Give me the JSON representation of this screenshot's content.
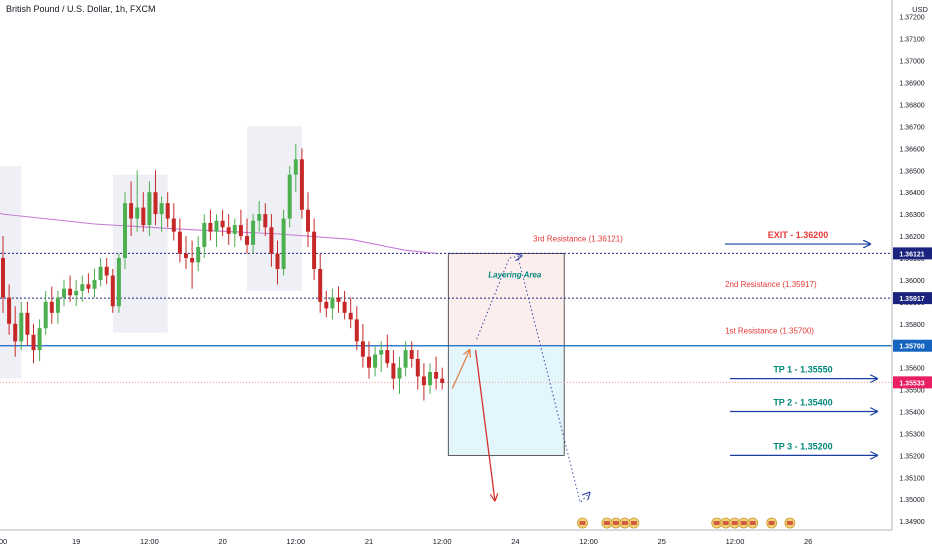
{
  "header": {
    "title": "British Pound / U.S. Dollar, 1h, FXCM",
    "currency": "USD"
  },
  "colors": {
    "up": "#4caf50",
    "down": "#c62828",
    "ma": "#c77ad6",
    "resistance": "#1a237e",
    "main_line": "#1565c0",
    "current_line": "#ef9a9a",
    "exit_text": "#e53935",
    "tp_text": "#00897b",
    "label_red": "#e53935",
    "arrow_blue": "#1a3fa0",
    "projection_red": "#d32f2f",
    "zone_top": "#fdeeee",
    "zone_bottom": "#e3f6fb"
  },
  "chart_data": {
    "type": "candlestick",
    "symbol": "GBP/USD",
    "timeframe": "1h",
    "ylim": [
      1.349,
      1.3724
    ],
    "yticks": [
      "1.37200",
      "1.37100",
      "1.37000",
      "1.36900",
      "1.36800",
      "1.36700",
      "1.36600",
      "1.36500",
      "1.36400",
      "1.36300",
      "1.36200",
      "1.36100",
      "1.36000",
      "1.35900",
      "1.35800",
      "1.35700",
      "1.35600",
      "1.35500",
      "1.35400",
      "1.35300",
      "1.35200",
      "1.35100",
      "1.35000",
      "1.34900"
    ],
    "xticks": [
      {
        "label": "00",
        "bar": 0
      },
      {
        "label": "19",
        "bar": 12
      },
      {
        "label": "12:00",
        "bar": 24
      },
      {
        "label": "20",
        "bar": 36
      },
      {
        "label": "12:00",
        "bar": 48
      },
      {
        "label": "21",
        "bar": 60
      },
      {
        "label": "12:00",
        "bar": 72
      },
      {
        "label": "24",
        "bar": 84
      },
      {
        "label": "12:00",
        "bar": 96
      },
      {
        "label": "25",
        "bar": 108
      },
      {
        "label": "12:00",
        "bar": 120
      },
      {
        "label": "26",
        "bar": 132
      }
    ],
    "candles": [
      [
        1.361,
        1.362,
        1.3585,
        1.3592
      ],
      [
        1.3592,
        1.3598,
        1.3575,
        1.358
      ],
      [
        1.358,
        1.3588,
        1.3565,
        1.3572
      ],
      [
        1.3572,
        1.359,
        1.3568,
        1.3585
      ],
      [
        1.3585,
        1.359,
        1.357,
        1.3575
      ],
      [
        1.3575,
        1.358,
        1.3562,
        1.3568
      ],
      [
        1.3568,
        1.3582,
        1.3563,
        1.3578
      ],
      [
        1.3578,
        1.3595,
        1.3575,
        1.359
      ],
      [
        1.359,
        1.3597,
        1.358,
        1.3585
      ],
      [
        1.3585,
        1.3595,
        1.358,
        1.3592
      ],
      [
        1.3592,
        1.36,
        1.3588,
        1.3596
      ],
      [
        1.3596,
        1.3602,
        1.359,
        1.3593
      ],
      [
        1.3593,
        1.36,
        1.3588,
        1.3595
      ],
      [
        1.3595,
        1.3602,
        1.359,
        1.3598
      ],
      [
        1.3598,
        1.3603,
        1.3594,
        1.3596
      ],
      [
        1.3596,
        1.3605,
        1.3592,
        1.36
      ],
      [
        1.36,
        1.361,
        1.3597,
        1.3606
      ],
      [
        1.3606,
        1.361,
        1.3598,
        1.3602
      ],
      [
        1.3602,
        1.3605,
        1.3585,
        1.3588
      ],
      [
        1.3588,
        1.3612,
        1.3585,
        1.361
      ],
      [
        1.361,
        1.364,
        1.3605,
        1.3635
      ],
      [
        1.3635,
        1.3645,
        1.362,
        1.3628
      ],
      [
        1.3628,
        1.365,
        1.3622,
        1.3633
      ],
      [
        1.3633,
        1.364,
        1.3622,
        1.3625
      ],
      [
        1.3625,
        1.3645,
        1.362,
        1.364
      ],
      [
        1.364,
        1.365,
        1.3625,
        1.363
      ],
      [
        1.363,
        1.3638,
        1.3622,
        1.3635
      ],
      [
        1.3635,
        1.364,
        1.3624,
        1.3628
      ],
      [
        1.3628,
        1.3635,
        1.3618,
        1.3622
      ],
      [
        1.3622,
        1.3628,
        1.3608,
        1.3612
      ],
      [
        1.3612,
        1.362,
        1.3605,
        1.361
      ],
      [
        1.361,
        1.3618,
        1.3596,
        1.3608
      ],
      [
        1.3608,
        1.362,
        1.3604,
        1.3615
      ],
      [
        1.3615,
        1.363,
        1.361,
        1.3626
      ],
      [
        1.3626,
        1.3632,
        1.3618,
        1.3622
      ],
      [
        1.3622,
        1.363,
        1.3615,
        1.3627
      ],
      [
        1.3627,
        1.3632,
        1.362,
        1.3624
      ],
      [
        1.3624,
        1.363,
        1.3616,
        1.3621
      ],
      [
        1.3621,
        1.3628,
        1.3615,
        1.3625
      ],
      [
        1.3625,
        1.3632,
        1.3618,
        1.362
      ],
      [
        1.362,
        1.3628,
        1.3612,
        1.3616
      ],
      [
        1.3616,
        1.363,
        1.3612,
        1.3627
      ],
      [
        1.3627,
        1.3636,
        1.3622,
        1.363
      ],
      [
        1.363,
        1.3635,
        1.362,
        1.3624
      ],
      [
        1.3624,
        1.363,
        1.3606,
        1.3612
      ],
      [
        1.3612,
        1.3618,
        1.3598,
        1.3605
      ],
      [
        1.3605,
        1.3632,
        1.3602,
        1.3628
      ],
      [
        1.3628,
        1.3652,
        1.3624,
        1.3648
      ],
      [
        1.3648,
        1.3662,
        1.364,
        1.3655
      ],
      [
        1.3655,
        1.366,
        1.3628,
        1.3632
      ],
      [
        1.3632,
        1.364,
        1.3615,
        1.3622
      ],
      [
        1.3622,
        1.3628,
        1.36,
        1.3605
      ],
      [
        1.3605,
        1.3612,
        1.3585,
        1.359
      ],
      [
        1.359,
        1.3595,
        1.3583,
        1.3587
      ],
      [
        1.3587,
        1.3596,
        1.3582,
        1.3592
      ],
      [
        1.3592,
        1.3597,
        1.3585,
        1.359
      ],
      [
        1.359,
        1.3595,
        1.3582,
        1.3585
      ],
      [
        1.3585,
        1.3592,
        1.3578,
        1.3582
      ],
      [
        1.3582,
        1.3588,
        1.3568,
        1.3572
      ],
      [
        1.3572,
        1.358,
        1.356,
        1.3565
      ],
      [
        1.3565,
        1.3572,
        1.3555,
        1.356
      ],
      [
        1.356,
        1.357,
        1.3556,
        1.3566
      ],
      [
        1.3566,
        1.3572,
        1.3558,
        1.3568
      ],
      [
        1.3568,
        1.3575,
        1.356,
        1.3562
      ],
      [
        1.3562,
        1.3568,
        1.355,
        1.3555
      ],
      [
        1.3555,
        1.3565,
        1.3548,
        1.356
      ],
      [
        1.356,
        1.3572,
        1.3556,
        1.3568
      ],
      [
        1.3568,
        1.3572,
        1.356,
        1.3564
      ],
      [
        1.3564,
        1.3568,
        1.355,
        1.3556
      ],
      [
        1.3556,
        1.3562,
        1.3545,
        1.3552
      ],
      [
        1.3552,
        1.3562,
        1.3548,
        1.3558
      ],
      [
        1.3558,
        1.3565,
        1.355,
        1.3555
      ],
      [
        1.3555,
        1.356,
        1.355,
        1.3553
      ]
    ],
    "ma_line": [
      [
        0,
        1.363
      ],
      [
        15,
        1.36255
      ],
      [
        30,
        1.3623
      ],
      [
        45,
        1.3621
      ],
      [
        57,
        1.36185
      ],
      [
        66,
        1.36135
      ],
      [
        71,
        1.36121
      ]
    ],
    "levels": [
      {
        "name": "3rd Resistance (1.36121)",
        "value": 1.36121,
        "badge": "1.36121",
        "style": "dotted"
      },
      {
        "name": "2nd Resistance (1.35917)",
        "value": 1.35917,
        "badge": "1.35917",
        "style": "dotted"
      },
      {
        "name": "1st Resistance (1.35700)",
        "value": 1.357,
        "badge": "1.35700",
        "style": "solid"
      },
      {
        "name": "current",
        "value": 1.35533,
        "badge": "1.35533",
        "style": "dotted-light"
      }
    ],
    "targets": [
      {
        "label": "EXIT - 1.36200",
        "value": 1.362,
        "kind": "exit"
      },
      {
        "label": "TP 1 - 1.35550",
        "value": 1.3555,
        "kind": "tp"
      },
      {
        "label": "TP 2 - 1.35400",
        "value": 1.354,
        "kind": "tp"
      },
      {
        "label": "TP 3 - 1.35200",
        "value": 1.352,
        "kind": "tp"
      }
    ],
    "zone": {
      "label": "Layering Area",
      "top": 1.36121,
      "mid": 1.357,
      "bottom": 1.352,
      "bar_start": 73,
      "bar_end": 92
    },
    "session_boxes": [
      {
        "bar_start": -1,
        "bar_end": 3,
        "top": 1.3652,
        "bottom": 1.3555
      },
      {
        "bar_start": 18,
        "bar_end": 27,
        "top": 1.3648,
        "bottom": 1.3576
      },
      {
        "bar_start": 40,
        "bar_end": 49,
        "top": 1.367,
        "bottom": 1.3595
      }
    ],
    "event_icons": [
      {
        "bar": 95,
        "count": 1
      },
      {
        "bar": 99,
        "count": 4
      },
      {
        "bar": 117,
        "count": 5
      },
      {
        "bar": 126,
        "count": 1
      },
      {
        "bar": 129,
        "count": 1
      }
    ]
  }
}
